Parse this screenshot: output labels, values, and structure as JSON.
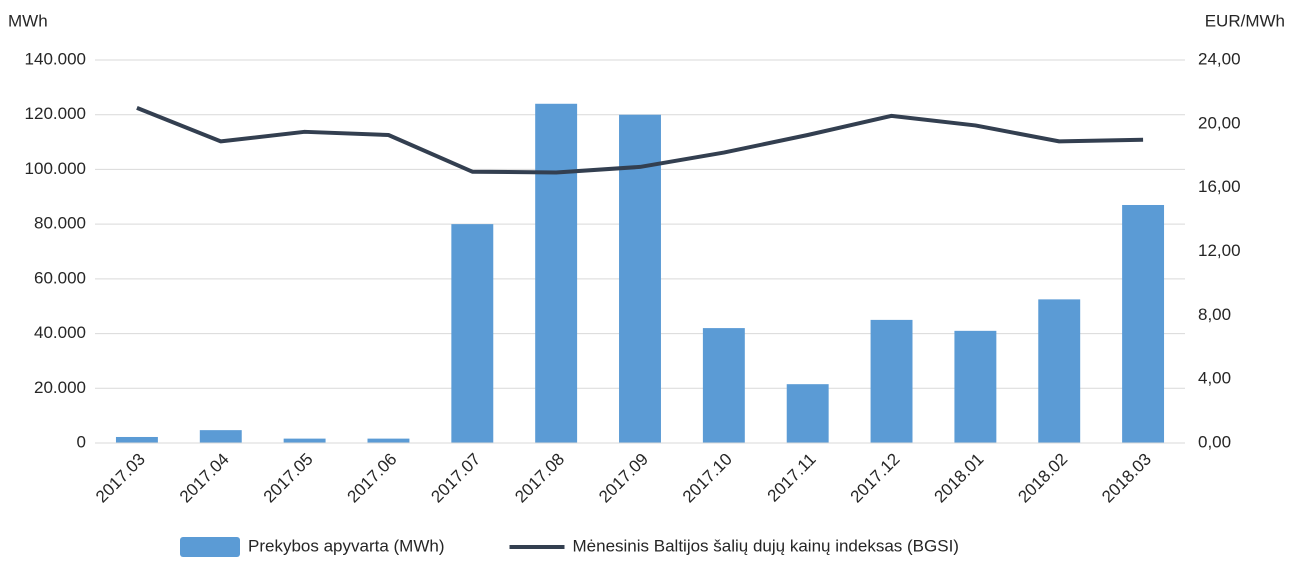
{
  "chart_data": {
    "type": "bar",
    "y_label": "MWh",
    "y2_label": "EUR/MWh",
    "categories": [
      "2017.03",
      "2017.04",
      "2017.05",
      "2017.06",
      "2017.07",
      "2017.08",
      "2017.09",
      "2017.10",
      "2017.11",
      "2017.12",
      "2018.01",
      "2018.02",
      "2018.03"
    ],
    "series": [
      {
        "name": "Prekybos apyvarta (MWh)",
        "type": "bar",
        "color": "#5b9bd5",
        "values": [
          2200,
          4700,
          1600,
          1600,
          80000,
          124000,
          120000,
          42000,
          21500,
          45000,
          41000,
          52500,
          87000
        ]
      },
      {
        "name": "Mėnesinis Baltijos šalių dujų kainų indeksas (BGSI)",
        "type": "line",
        "axis": "y2",
        "color": "#333f50",
        "values": [
          21.0,
          18.9,
          19.5,
          19.3,
          17.0,
          16.95,
          17.3,
          18.2,
          19.3,
          20.5,
          19.9,
          18.9,
          19.0
        ]
      }
    ],
    "ylim": [
      0,
      140000
    ],
    "yticks": [
      0,
      {
        "value": 20000,
        "label": "20.000"
      },
      {
        "value": 40000,
        "label": "40.000"
      },
      {
        "value": 60000,
        "label": "60.000"
      },
      {
        "value": 80000,
        "label": "80.000"
      },
      {
        "value": 100000,
        "label": "100.000"
      },
      {
        "value": 120000,
        "label": "120.000"
      },
      {
        "value": 140000,
        "label": "140.000"
      }
    ],
    "y2lim": [
      0,
      24
    ],
    "y2ticks": [
      {
        "value": 0,
        "label": "0,00"
      },
      {
        "value": 4,
        "label": "4,00"
      },
      {
        "value": 8,
        "label": "8,00"
      },
      {
        "value": 12,
        "label": "12,00"
      },
      {
        "value": 16,
        "label": "16,00"
      },
      {
        "value": 20,
        "label": "20,00"
      },
      {
        "value": 24,
        "label": "24,00"
      }
    ],
    "grid": true,
    "legend": "bottom"
  }
}
